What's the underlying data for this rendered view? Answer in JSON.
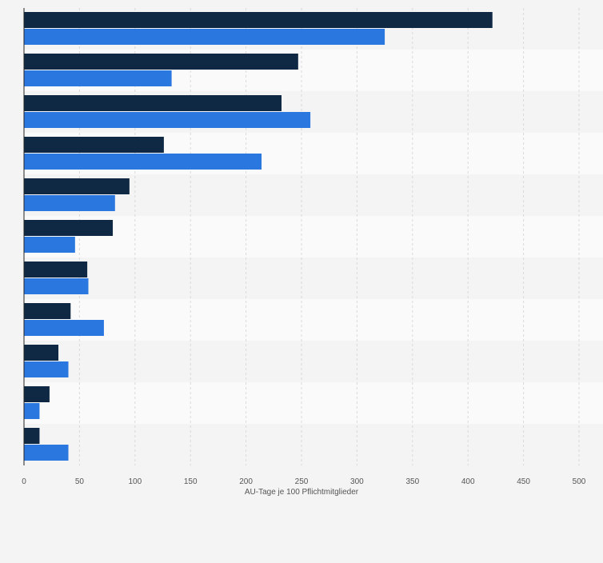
{
  "chart_data": {
    "type": "bar",
    "orientation": "horizontal",
    "categories": [
      "",
      "",
      "",
      "",
      "",
      "",
      "",
      "",
      "",
      "",
      ""
    ],
    "series": [
      {
        "values": [
          422,
          247,
          232,
          126,
          95,
          80,
          57,
          42,
          31,
          23,
          14
        ]
      },
      {
        "values": [
          325,
          133,
          258,
          214,
          82,
          46,
          58,
          72,
          40,
          14,
          40
        ]
      }
    ],
    "xlabel": "AU-Tage je 100 Pflichtmitglieder",
    "ylabel": "",
    "xlim": [
      0,
      500
    ],
    "xticks": [
      0,
      50,
      100,
      150,
      200,
      250,
      300,
      350,
      400,
      450,
      500
    ],
    "xtick_labels": [
      "0",
      "50",
      "100",
      "150",
      "200",
      "250",
      "300",
      "350",
      "400",
      "450",
      "500"
    ],
    "grid": true,
    "legend": "none",
    "colors": {
      "series_0": "#0f2944",
      "series_1": "#2b77e0",
      "band_odd": "#f4f4f4",
      "band_even": "#fafafa",
      "grid": "#d9d9d9",
      "axis": "#222222",
      "tick_text": "#555555"
    }
  }
}
